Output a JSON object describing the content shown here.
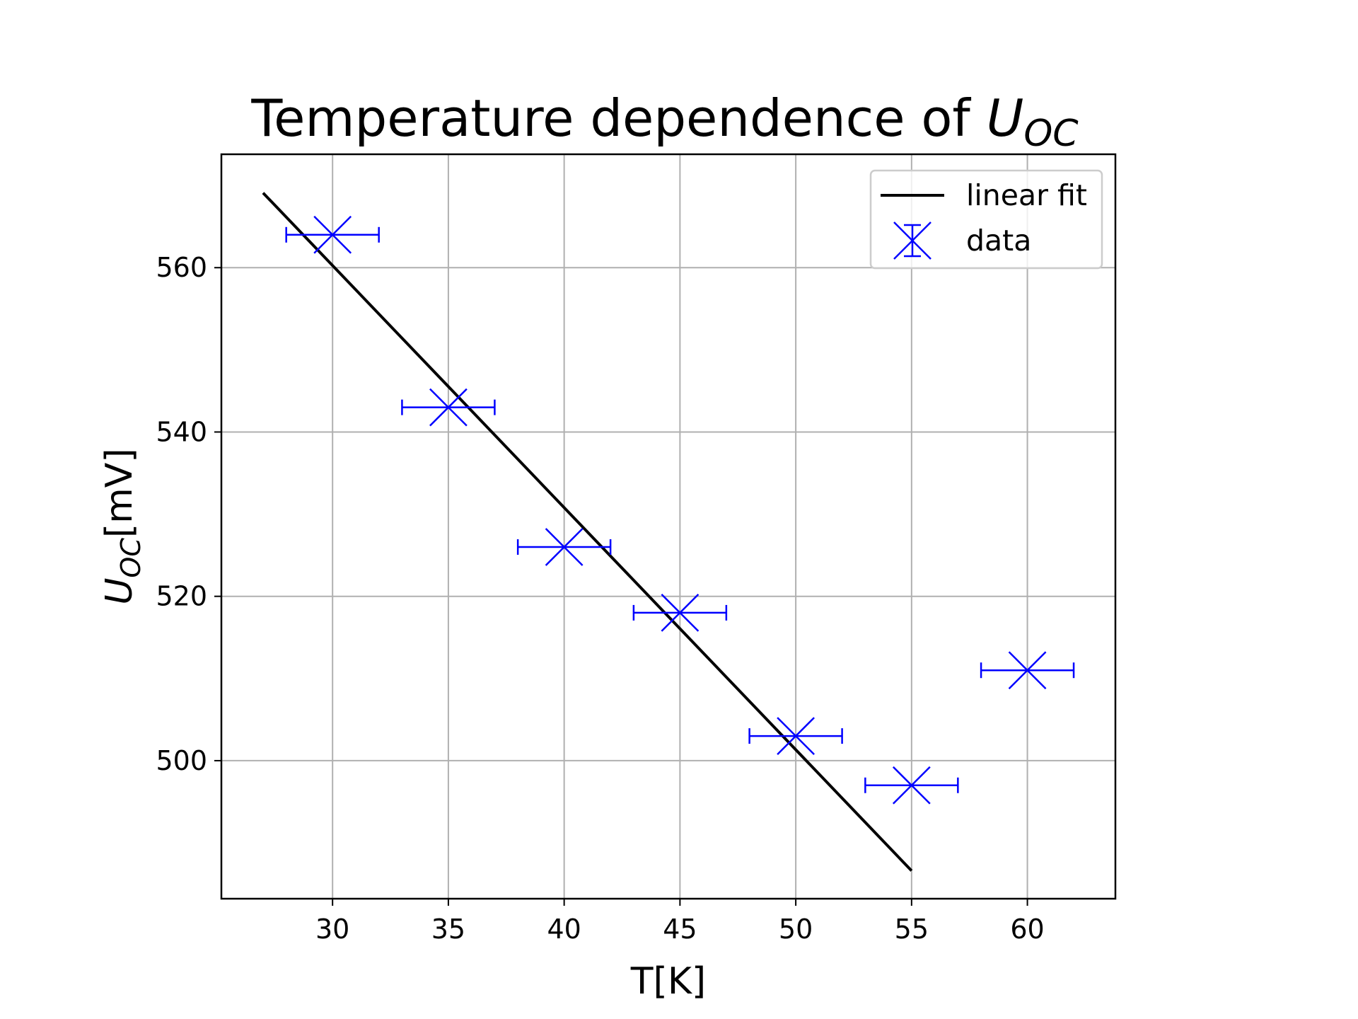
{
  "chart_data": {
    "type": "scatter",
    "title": {
      "text": "Temperature dependence of ",
      "symbol": "U",
      "subscript": "OC"
    },
    "xlabel": "T[K]",
    "ylabel": {
      "symbol": "U",
      "subscript": "OC",
      "unit": "[mV]"
    },
    "xlim": [
      25.2,
      63.8
    ],
    "ylim": [
      483.2,
      573.8
    ],
    "xticks": [
      30,
      35,
      40,
      45,
      50,
      55,
      60
    ],
    "yticks": [
      500,
      520,
      540,
      560
    ],
    "grid": true,
    "legend_position": "top-right",
    "series": [
      {
        "name": "linear fit",
        "kind": "line",
        "color": "#000000",
        "x": [
          27,
          55
        ],
        "y": [
          569.1,
          486.6
        ]
      },
      {
        "name": "data",
        "kind": "errorbar",
        "marker": "x",
        "color": "#0000ff",
        "x": [
          30,
          35,
          40,
          45,
          50,
          55,
          60
        ],
        "y": [
          564,
          543,
          526,
          518,
          503,
          497,
          511
        ],
        "xerr": [
          2,
          2,
          2,
          2,
          2,
          2,
          2
        ]
      }
    ]
  }
}
